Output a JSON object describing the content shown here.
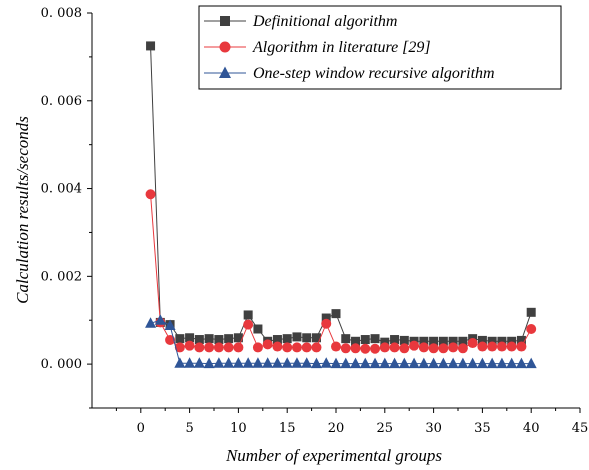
{
  "chart_data": {
    "type": "line",
    "xlabel": "Number of experimental groups",
    "ylabel": "Calculation results/seconds",
    "xlim": [
      -5,
      45
    ],
    "ylim": [
      -0.001,
      0.008
    ],
    "xticks": [
      0,
      5,
      10,
      15,
      20,
      25,
      30,
      35,
      40,
      45
    ],
    "xtick_labels": [
      "0",
      "5",
      "10",
      "15",
      "20",
      "25",
      "30",
      "35",
      "40",
      "45"
    ],
    "yticks": [
      0,
      0.002,
      0.004,
      0.006,
      0.008
    ],
    "ytick_labels": [
      "0. 000",
      "0. 002",
      "0. 004",
      "0. 006",
      "0. 008"
    ],
    "legend_position": "top-right",
    "grid": false,
    "x": [
      1,
      2,
      3,
      4,
      5,
      6,
      7,
      8,
      9,
      10,
      11,
      12,
      13,
      14,
      15,
      16,
      17,
      18,
      19,
      20,
      21,
      22,
      23,
      24,
      25,
      26,
      27,
      28,
      29,
      30,
      31,
      32,
      33,
      34,
      35,
      36,
      37,
      38,
      39,
      40
    ],
    "series": [
      {
        "name": "Definitional algorithm",
        "color": "#404040",
        "marker": "square",
        "values": [
          0.00725,
          0.00095,
          0.0009,
          0.00058,
          0.0006,
          0.00056,
          0.00058,
          0.00056,
          0.00058,
          0.0006,
          0.00112,
          0.0008,
          0.00052,
          0.00056,
          0.00058,
          0.00062,
          0.0006,
          0.0006,
          0.00105,
          0.00115,
          0.00058,
          0.00052,
          0.00056,
          0.00058,
          0.0005,
          0.00056,
          0.00054,
          0.00052,
          0.00052,
          0.00052,
          0.00052,
          0.00052,
          0.00052,
          0.00058,
          0.00054,
          0.00052,
          0.00052,
          0.00052,
          0.00054,
          0.00118
        ]
      },
      {
        "name": "Algorithm in literature [29]",
        "color": "#e8383d",
        "marker": "circle",
        "values": [
          0.00387,
          0.00095,
          0.00055,
          0.00038,
          0.00042,
          0.00038,
          0.00038,
          0.00038,
          0.00038,
          0.00038,
          0.0009,
          0.00038,
          0.00045,
          0.0004,
          0.00038,
          0.00038,
          0.00038,
          0.00038,
          0.00092,
          0.0004,
          0.00036,
          0.00036,
          0.00035,
          0.00035,
          0.00038,
          0.00038,
          0.00036,
          0.00042,
          0.00038,
          0.00036,
          0.00036,
          0.00038,
          0.00036,
          0.00048,
          0.0004,
          0.0004,
          0.0004,
          0.0004,
          0.0004,
          0.0008
        ]
      },
      {
        "name": "One-step window recursive algorithm",
        "color": "#2f5597",
        "marker": "triangle",
        "values": [
          0.00093,
          0.001,
          0.00088,
          2e-05,
          2e-05,
          2e-05,
          1e-05,
          2e-05,
          2e-05,
          2e-05,
          2e-05,
          2e-05,
          2e-05,
          2e-05,
          2e-05,
          2e-05,
          2e-05,
          1e-05,
          2e-05,
          1e-05,
          1e-05,
          1e-05,
          1e-05,
          1e-05,
          1e-05,
          1e-05,
          1e-05,
          1e-05,
          1e-05,
          1e-05,
          1e-05,
          1e-05,
          1e-05,
          1e-05,
          1e-05,
          1e-05,
          1e-05,
          1e-05,
          1e-05,
          1e-05
        ]
      }
    ]
  }
}
